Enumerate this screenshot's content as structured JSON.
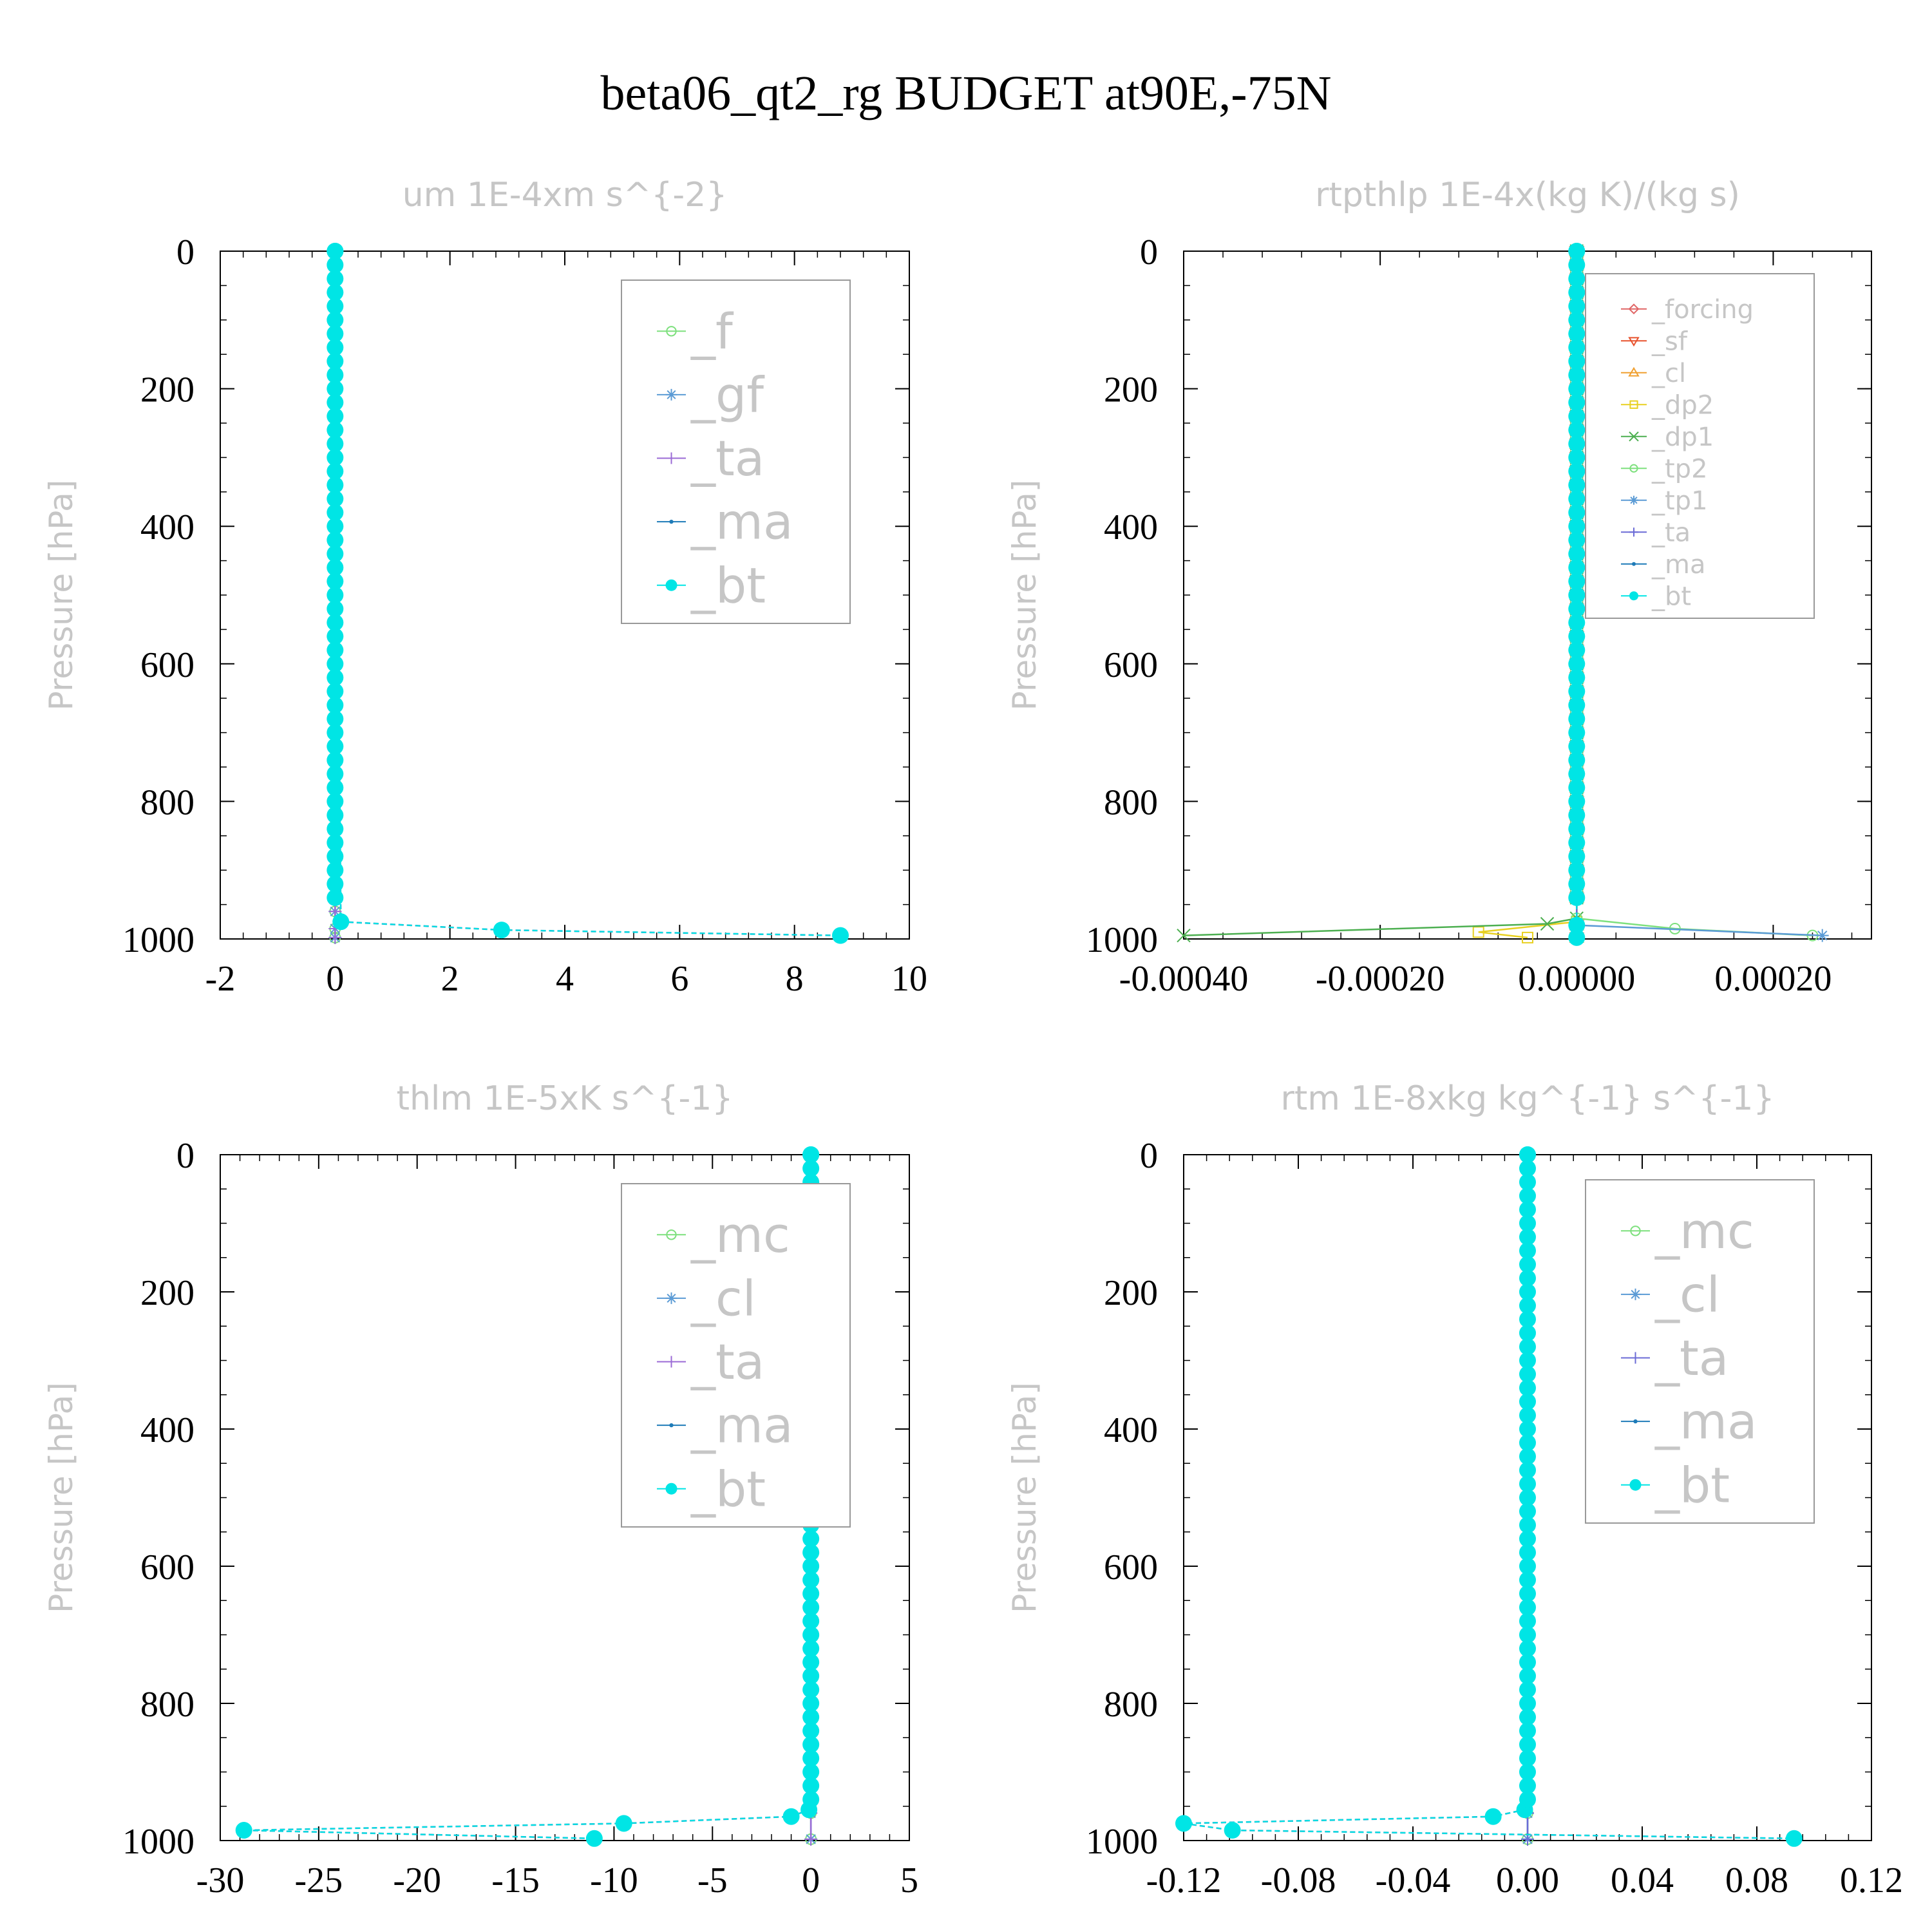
{
  "title": "beta06_qt2_rg  BUDGET at90E,-75N",
  "chart_data": [
    {
      "type": "line",
      "title": "um   1E-4xm s^{-2}",
      "ylabel": "Pressure [hPa]",
      "xlim": [
        -2,
        10
      ],
      "ylim": [
        1000,
        0
      ],
      "xticks": [
        -2,
        0,
        2,
        4,
        6,
        8,
        10
      ],
      "xtick_labels": [
        "-2",
        "0",
        "2",
        "4",
        "6",
        "8",
        "10"
      ],
      "yticks": [
        0,
        200,
        400,
        600,
        800,
        1000
      ],
      "ytick_labels": [
        "0",
        "200",
        "400",
        "600",
        "800",
        "1000"
      ],
      "legend": "top-right",
      "legend_size": "large",
      "series": [
        {
          "name": "_f",
          "color": "#7de07d",
          "marker": "circle-open",
          "x": [
            0,
            0,
            0,
            0
          ],
          "y": [
            0,
            960,
            985,
            998
          ]
        },
        {
          "name": "_gf",
          "color": "#5b9bd5",
          "marker": "star",
          "x": [
            0,
            0,
            0,
            0
          ],
          "y": [
            0,
            960,
            985,
            998
          ]
        },
        {
          "name": "_ta",
          "color": "#9b6bd6",
          "marker": "plus",
          "x": [
            0,
            0,
            0,
            0
          ],
          "y": [
            0,
            960,
            985,
            998
          ]
        },
        {
          "name": "_ma",
          "color": "#1e7bb8",
          "marker": "dot",
          "x": [
            0,
            0.1,
            2.9,
            8.8
          ],
          "y": [
            0,
            975,
            987,
            995
          ]
        },
        {
          "name": "_bt",
          "color": "#00e5e5",
          "marker": "filled",
          "x": [
            0,
            0.1,
            2.9,
            8.8
          ],
          "y": [
            0,
            975,
            987,
            995
          ]
        }
      ]
    },
    {
      "type": "line",
      "title": "rtpthlp   1E-4x(kg K)/(kg s)",
      "ylabel": "Pressure [hPa]",
      "xlim": [
        -0.0004,
        0.0003
      ],
      "ylim": [
        1000,
        0
      ],
      "xticks": [
        -0.0004,
        -0.0002,
        0,
        0.0002
      ],
      "xtick_labels": [
        "-0.00040",
        "-0.00020",
        "0.00000",
        "0.00020"
      ],
      "yticks": [
        0,
        200,
        400,
        600,
        800,
        1000
      ],
      "ytick_labels": [
        "0",
        "200",
        "400",
        "600",
        "800",
        "1000"
      ],
      "legend": "top-right",
      "legend_size": "small",
      "series": [
        {
          "name": "_forcing",
          "color": "#e06666",
          "marker": "diamond",
          "x": [
            0,
            0,
            0
          ],
          "y": [
            0,
            980,
            998
          ]
        },
        {
          "name": "_sf",
          "color": "#e8532e",
          "marker": "tri-down",
          "x": [
            0,
            0,
            0
          ],
          "y": [
            0,
            980,
            998
          ]
        },
        {
          "name": "_cl",
          "color": "#f0a030",
          "marker": "tri-up",
          "x": [
            0,
            0,
            0
          ],
          "y": [
            0,
            980,
            998
          ]
        },
        {
          "name": "_dp2",
          "color": "#e8d020",
          "marker": "square",
          "x": [
            0,
            0,
            -0.0001,
            -5e-05
          ],
          "y": [
            0,
            975,
            990,
            998
          ]
        },
        {
          "name": "_dp1",
          "color": "#4caf50",
          "marker": "x",
          "x": [
            0,
            0,
            -3e-05,
            -0.0004
          ],
          "y": [
            0,
            970,
            978,
            995
          ]
        },
        {
          "name": "_tp2",
          "color": "#7de07d",
          "marker": "circle-open",
          "x": [
            0,
            0,
            0.0001,
            0.00024
          ],
          "y": [
            0,
            970,
            985,
            995
          ]
        },
        {
          "name": "_tp1",
          "color": "#5b9bd5",
          "marker": "star",
          "x": [
            0,
            0,
            0.00025
          ],
          "y": [
            0,
            980,
            995
          ]
        },
        {
          "name": "_ta",
          "color": "#6b6bd6",
          "marker": "plus",
          "x": [
            0,
            0,
            0
          ],
          "y": [
            0,
            980,
            998
          ]
        },
        {
          "name": "_ma",
          "color": "#1e7bb8",
          "marker": "dot",
          "x": [
            0,
            0,
            0
          ],
          "y": [
            0,
            980,
            998
          ]
        },
        {
          "name": "_bt",
          "color": "#00e5e5",
          "marker": "filled",
          "x": [
            0,
            0,
            0
          ],
          "y": [
            0,
            980,
            998
          ]
        }
      ]
    },
    {
      "type": "line",
      "title": "thlm   1E-5xK s^{-1}",
      "ylabel": "Pressure [hPa]",
      "xlim": [
        -30,
        5
      ],
      "ylim": [
        1000,
        0
      ],
      "xticks": [
        -30,
        -25,
        -20,
        -15,
        -10,
        -5,
        0,
        5
      ],
      "xtick_labels": [
        "-30",
        "-25",
        "-20",
        "-15",
        "-10",
        "-5",
        "0",
        "5"
      ],
      "yticks": [
        0,
        200,
        400,
        600,
        800,
        1000
      ],
      "ytick_labels": [
        "0",
        "200",
        "400",
        "600",
        "800",
        "1000"
      ],
      "legend": "top-right",
      "legend_size": "large",
      "series": [
        {
          "name": "_mc",
          "color": "#7de07d",
          "marker": "circle-open",
          "x": [
            0,
            0,
            0
          ],
          "y": [
            0,
            960,
            998
          ]
        },
        {
          "name": "_cl",
          "color": "#5b9bd5",
          "marker": "star",
          "x": [
            0,
            0,
            0
          ],
          "y": [
            0,
            960,
            998
          ]
        },
        {
          "name": "_ta",
          "color": "#9b6bd6",
          "marker": "plus",
          "x": [
            0,
            0,
            0
          ],
          "y": [
            0,
            960,
            998
          ]
        },
        {
          "name": "_ma",
          "color": "#1e7bb8",
          "marker": "dot",
          "x": [
            0,
            -0.1,
            -1,
            -9.5,
            -28.8,
            -11
          ],
          "y": [
            0,
            955,
            965,
            975,
            985,
            997
          ]
        },
        {
          "name": "_bt",
          "color": "#00e5e5",
          "marker": "filled",
          "x": [
            0,
            -0.1,
            -1,
            -9.5,
            -28.8,
            -11
          ],
          "y": [
            0,
            955,
            965,
            975,
            985,
            997
          ]
        }
      ]
    },
    {
      "type": "line",
      "title": "rtm   1E-8xkg kg^{-1} s^{-1}",
      "ylabel": "Pressure [hPa]",
      "xlim": [
        -0.12,
        0.12
      ],
      "ylim": [
        1000,
        0
      ],
      "xticks": [
        -0.12,
        -0.08,
        -0.04,
        0,
        0.04,
        0.08,
        0.12
      ],
      "xtick_labels": [
        "-0.12",
        "-0.08",
        "-0.04",
        "0.00",
        "0.04",
        "0.08",
        "0.12"
      ],
      "yticks": [
        0,
        200,
        400,
        600,
        800,
        1000
      ],
      "ytick_labels": [
        "0",
        "200",
        "400",
        "600",
        "800",
        "1000"
      ],
      "legend": "top-right",
      "legend_size": "large",
      "series": [
        {
          "name": "_mc",
          "color": "#7de07d",
          "marker": "circle-open",
          "x": [
            0,
            0,
            0
          ],
          "y": [
            0,
            960,
            998
          ]
        },
        {
          "name": "_cl",
          "color": "#5b9bd5",
          "marker": "star",
          "x": [
            0,
            0,
            0
          ],
          "y": [
            0,
            960,
            998
          ]
        },
        {
          "name": "_ta",
          "color": "#6b6bd6",
          "marker": "plus",
          "x": [
            0,
            0,
            0
          ],
          "y": [
            0,
            960,
            998
          ]
        },
        {
          "name": "_ma",
          "color": "#1e7bb8",
          "marker": "dot",
          "x": [
            0,
            -0.001,
            -0.012,
            -0.12,
            -0.103,
            0.093
          ],
          "y": [
            0,
            955,
            965,
            975,
            985,
            997
          ]
        },
        {
          "name": "_bt",
          "color": "#00e5e5",
          "marker": "filled",
          "x": [
            0,
            -0.001,
            -0.012,
            -0.12,
            -0.103,
            0.093
          ],
          "y": [
            0,
            955,
            965,
            975,
            985,
            997
          ]
        }
      ]
    }
  ]
}
